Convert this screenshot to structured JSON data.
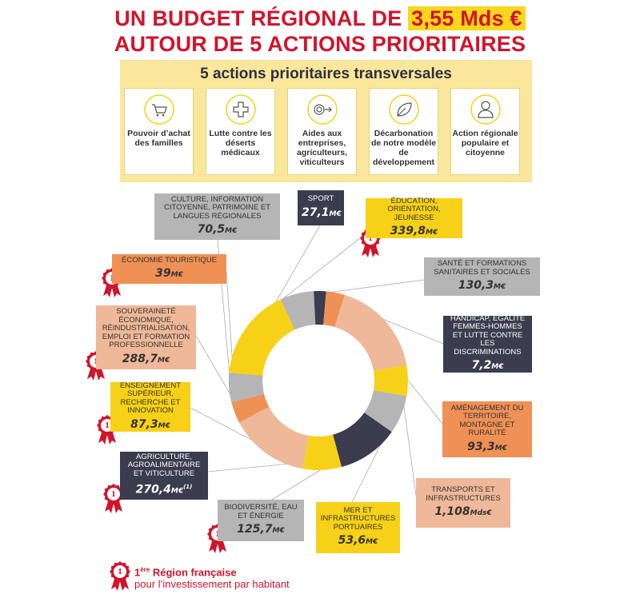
{
  "header": {
    "title_line1": "UN BUDGET RÉGIONAL DE",
    "title_highlight": "3,55 Mds €",
    "title_line2": "AUTOUR DE 5 ACTIONS PRIORITAIRES"
  },
  "actions": {
    "title": "5 actions prioritaires transversales",
    "items": [
      "Pouvoir d’achat des familles",
      "Lutte contre les déserts médicaux",
      "Aides aux entreprises, agriculteurs, viticulteurs",
      "Décarbonation de notre modèle de développement",
      "Action régionale populaire et citoyenne"
    ]
  },
  "medal_label": "1",
  "budget": [
    {
      "label": "CULTURE, INFORMATION CITOYENNE, PATRIMOINE ET LANGUES RÉGIONALES",
      "amount": "70,5",
      "unit": "M€"
    },
    {
      "label": "SPORT",
      "amount": "27,1",
      "unit": "M€"
    },
    {
      "label": "ÉDUCATION, ORIENTATION, JEUNESSE",
      "amount": "339,8",
      "unit": "M€"
    },
    {
      "label": "ÉCONOMIE TOURISTIQUE",
      "amount": "39",
      "unit": "M€"
    },
    {
      "label": "SANTÉ ET FORMATIONS SANITAIRES ET SOCIALES",
      "amount": "130,3",
      "unit": "M€"
    },
    {
      "label": "SOUVERAINETÉ ÉCONOMIQUE, RÉINDUSTRIALISATION, EMPLOI ET FORMATION PROFESSIONNELLE",
      "amount": "288,7",
      "unit": "M€"
    },
    {
      "label": "HANDICAP, ÉGALITÉ FEMMES-HOMMES ET LUTTE CONTRE LES DISCRIMINATIONS",
      "amount": "7,2",
      "unit": "M€"
    },
    {
      "label": "ENSEIGNEMENT SUPÉRIEUR, RECHERCHE ET INNOVATION",
      "amount": "87,3",
      "unit": "M€"
    },
    {
      "label": "AMÉNAGEMENT DU TERRITOIRE, MONTAGNE ET RURALITÉ",
      "amount": "93,3",
      "unit": "M€"
    },
    {
      "label": "AGRICULTURE, AGROALIMENTAIRE ET VITICULTURE",
      "amount": "270,4",
      "unit": "M€",
      "note": "(1)"
    },
    {
      "label": "TRANSPORTS ET INFRASTRUCTURES",
      "amount": "1,108",
      "unit": "Mds€"
    },
    {
      "label": "BIODIVERSITÉ, EAU ET ÉNERGIE",
      "amount": "125,7",
      "unit": "M€"
    },
    {
      "label": "MER ET INFRASTRUCTURES PORTUAIRES",
      "amount": "53,6",
      "unit": "M€"
    }
  ],
  "footer": {
    "rank": "1",
    "rank_suffix": "ère",
    "title": "Région française",
    "subtitle": "pour l’investissement par habitant"
  }
}
